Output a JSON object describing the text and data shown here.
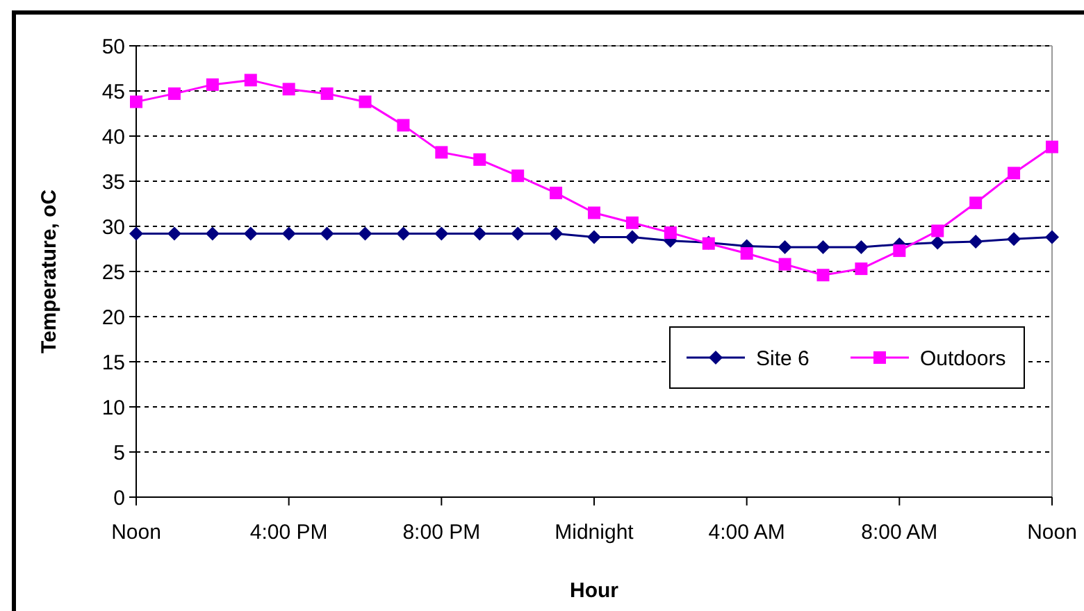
{
  "chart_data": {
    "type": "line",
    "xlabel": "Hour",
    "ylabel": "Temperature, oC",
    "categories": [
      "Noon",
      null,
      null,
      null,
      "4:00 PM",
      null,
      null,
      null,
      "8:00 PM",
      null,
      null,
      null,
      "Midnight",
      null,
      null,
      null,
      "4:00 AM",
      null,
      null,
      null,
      "8:00 AM",
      null,
      null,
      null,
      "Noon"
    ],
    "series": [
      {
        "name": "Site 6",
        "color": "#000080",
        "marker": "diamond",
        "values": [
          29.2,
          29.2,
          29.2,
          29.2,
          29.2,
          29.2,
          29.2,
          29.2,
          29.2,
          29.2,
          29.2,
          29.2,
          28.8,
          28.8,
          28.4,
          28.2,
          27.8,
          27.7,
          27.7,
          27.7,
          28.0,
          28.2,
          28.3,
          28.6,
          28.8
        ]
      },
      {
        "name": "Outdoors",
        "color": "#ff00ff",
        "marker": "square",
        "values": [
          43.8,
          44.7,
          45.7,
          46.2,
          45.2,
          44.7,
          43.8,
          41.2,
          38.2,
          37.4,
          35.6,
          33.7,
          31.5,
          30.4,
          29.3,
          28.1,
          27.0,
          25.8,
          24.6,
          25.3,
          27.3,
          29.5,
          32.6,
          35.9,
          38.8
        ]
      }
    ],
    "ylim": [
      0,
      50
    ],
    "yticks": [
      0,
      5,
      10,
      15,
      20,
      25,
      30,
      35,
      40,
      45,
      50
    ],
    "grid": "y",
    "legend": "bottom right",
    "line_style": "solid"
  }
}
